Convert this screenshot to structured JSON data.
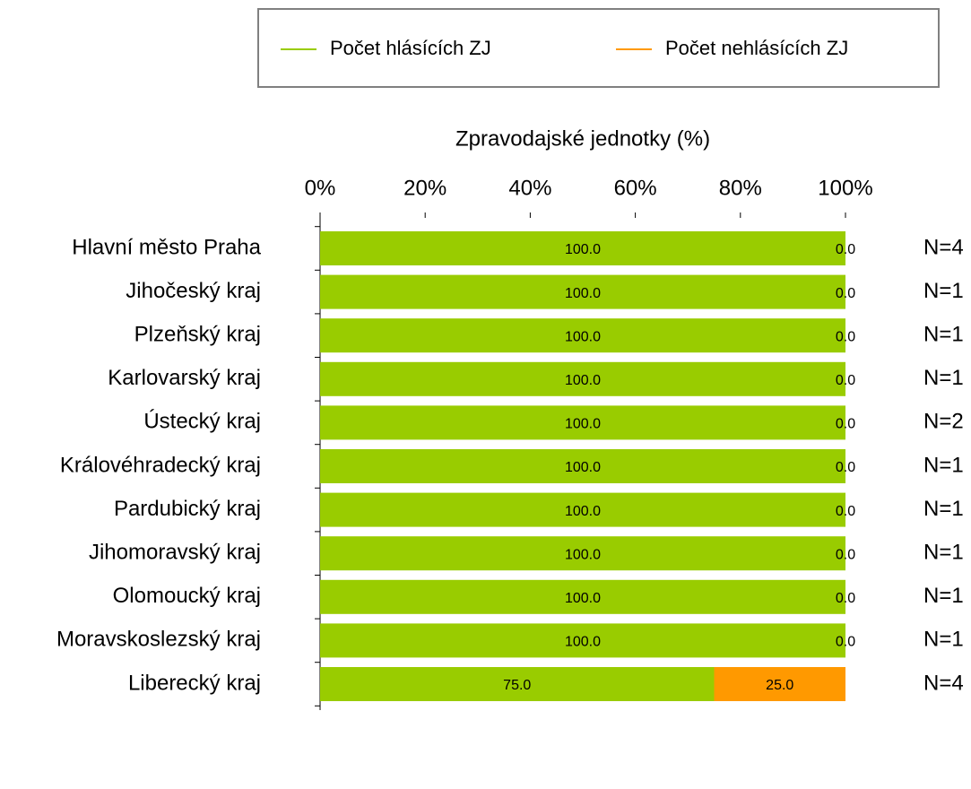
{
  "chart_data": {
    "type": "stacked_barh",
    "xlabel": "Zpravodajské jednotky (%)",
    "categories": [
      "Hlavní město Praha",
      "Jihočeský kraj",
      "Plzeňský kraj",
      "Karlovarský kraj",
      "Ústecký kraj",
      "Královéhradecký kraj",
      "Pardubický kraj",
      "Jihomoravský kraj",
      "Olomoucký kraj",
      "Moravskoslezský kraj",
      "Liberecký kraj"
    ],
    "series": [
      {
        "name": "Počet hlásících ZJ",
        "color": "#99cc00",
        "values": [
          100,
          100,
          100,
          100,
          100,
          100,
          100,
          100,
          100,
          100,
          75
        ],
        "value_labels": [
          "100.0",
          "100.0",
          "100.0",
          "100.0",
          "100.0",
          "100.0",
          "100.0",
          "100.0",
          "100.0",
          "100.0",
          "75.0"
        ]
      },
      {
        "name": "Počet nehlásících ZJ",
        "color": "#ff9900",
        "values": [
          0,
          0,
          0,
          0,
          0,
          0,
          0,
          0,
          0,
          0,
          25
        ],
        "value_labels": [
          "0.0",
          "0.0",
          "0.0",
          "0.0",
          "0.0",
          "0.0",
          "0.0",
          "0.0",
          "0.0",
          "0.0",
          "25.0"
        ]
      }
    ],
    "annotations": [
      "N=4",
      "N=1",
      "N=1",
      "N=1",
      "N=2",
      "N=1",
      "N=1",
      "N=1",
      "N=1",
      "N=1",
      "N=4"
    ],
    "xlim": [
      0,
      100
    ],
    "xticks": [
      {
        "value": 0,
        "label": "0%"
      },
      {
        "value": 20,
        "label": "20%"
      },
      {
        "value": 40,
        "label": "40%"
      },
      {
        "value": 60,
        "label": "60%"
      },
      {
        "value": 80,
        "label": "80%"
      },
      {
        "value": 100,
        "label": "100%"
      }
    ],
    "legend": "top"
  }
}
